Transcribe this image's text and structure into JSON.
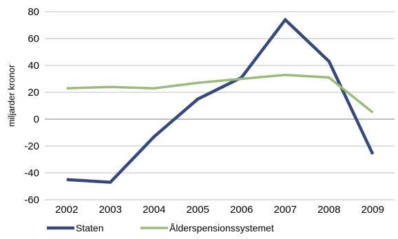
{
  "chart_data": {
    "type": "line",
    "title": "",
    "xlabel": "",
    "ylabel": "miljarder kronor",
    "x": [
      "2002",
      "2003",
      "2004",
      "2005",
      "2006",
      "2007",
      "2008",
      "2009"
    ],
    "ylim": [
      -60,
      80
    ],
    "yticks": [
      "-60",
      "-40",
      "-20",
      "0",
      "20",
      "40",
      "60",
      "80"
    ],
    "grid": "horizontal",
    "legend_position": "bottom-left",
    "series": [
      {
        "name": "Staten",
        "color": "#36497B",
        "values": [
          -45,
          -47,
          -13,
          15,
          31,
          74,
          43,
          -26
        ]
      },
      {
        "name": "Ålderspensionssystemet",
        "color": "#9BBB7A",
        "values": [
          23,
          24,
          23,
          27,
          30,
          33,
          31,
          5
        ]
      }
    ]
  }
}
